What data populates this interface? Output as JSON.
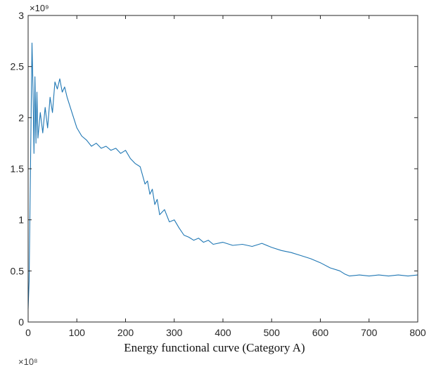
{
  "caption": "Energy functional curve (Category A)",
  "next_chart_fragment": "×10⁸",
  "chart_data": {
    "type": "line",
    "title": "",
    "xlabel": "",
    "ylabel": "",
    "xlim": [
      0,
      800
    ],
    "ylim": [
      0,
      3
    ],
    "y_exponent_label": "×10⁹",
    "xticks": [
      "0",
      "100",
      "200",
      "300",
      "400",
      "500",
      "600",
      "700",
      "800"
    ],
    "yticks": [
      "0",
      "0.5",
      "1",
      "1.5",
      "2",
      "2.5",
      "3"
    ],
    "grid": false,
    "line_color": "#1f77b4",
    "series": [
      {
        "x": [
          0,
          2,
          4,
          6,
          8,
          10,
          12,
          14,
          16,
          18,
          20,
          25,
          30,
          35,
          40,
          45,
          50,
          55,
          60,
          65,
          70,
          75,
          80,
          90,
          100,
          110,
          120,
          130,
          140,
          150,
          160,
          170,
          180,
          190,
          200,
          210,
          220,
          230,
          240,
          245,
          250,
          255,
          260,
          265,
          270,
          280,
          290,
          300,
          310,
          320,
          330,
          340,
          350,
          360,
          370,
          380,
          400,
          420,
          440,
          460,
          480,
          500,
          520,
          540,
          560,
          580,
          600,
          620,
          640,
          650,
          660,
          680,
          700,
          720,
          740,
          760,
          780,
          800
        ],
        "y": [
          0.13,
          0.4,
          1.2,
          2.0,
          2.73,
          2.3,
          1.65,
          2.4,
          1.75,
          2.25,
          1.8,
          2.05,
          1.85,
          2.1,
          1.9,
          2.2,
          2.05,
          2.35,
          2.28,
          2.38,
          2.25,
          2.3,
          2.2,
          2.05,
          1.9,
          1.82,
          1.78,
          1.72,
          1.75,
          1.7,
          1.72,
          1.68,
          1.7,
          1.65,
          1.68,
          1.6,
          1.55,
          1.52,
          1.35,
          1.38,
          1.25,
          1.3,
          1.15,
          1.2,
          1.05,
          1.1,
          0.98,
          1.0,
          0.92,
          0.85,
          0.83,
          0.8,
          0.82,
          0.78,
          0.8,
          0.76,
          0.78,
          0.75,
          0.76,
          0.74,
          0.77,
          0.73,
          0.7,
          0.68,
          0.65,
          0.62,
          0.58,
          0.53,
          0.5,
          0.47,
          0.45,
          0.46,
          0.45,
          0.46,
          0.45,
          0.46,
          0.45,
          0.46
        ]
      }
    ]
  }
}
